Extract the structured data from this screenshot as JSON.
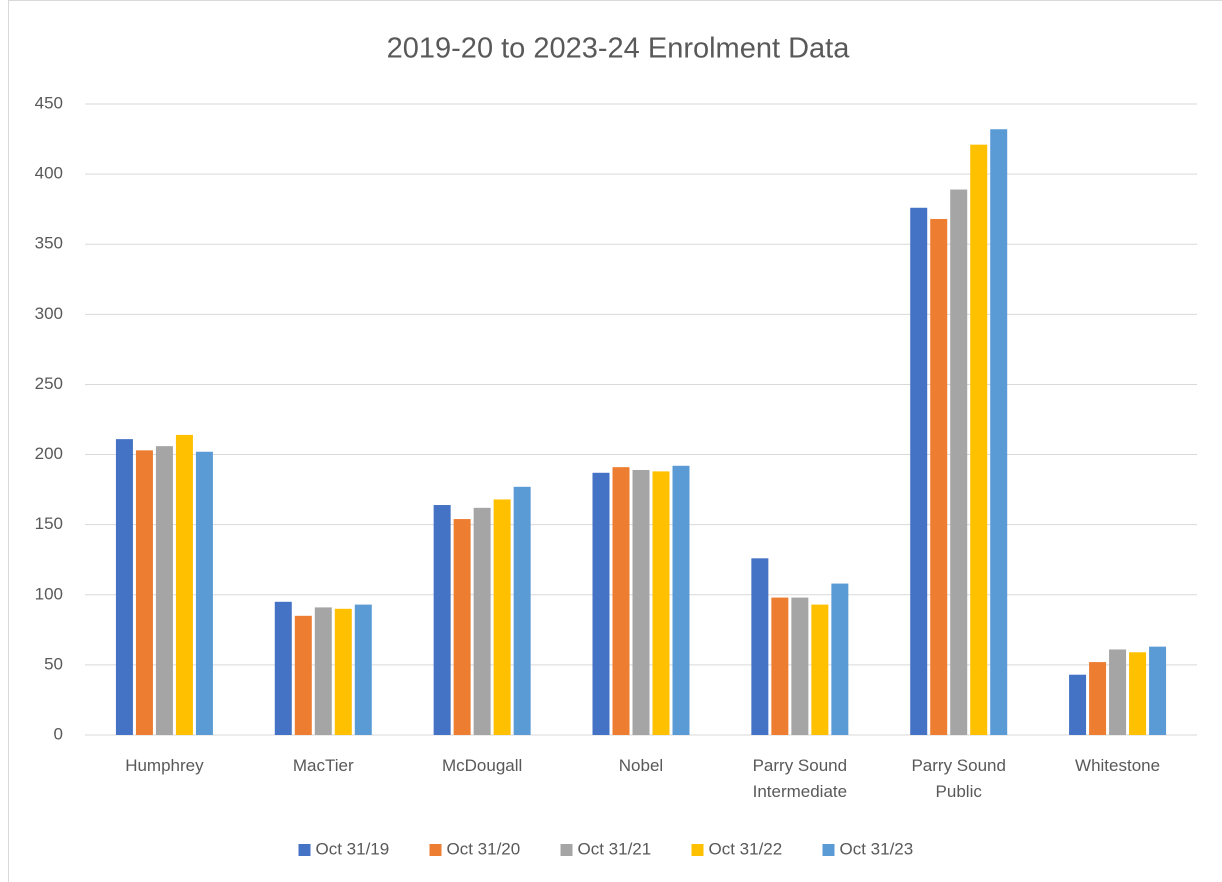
{
  "chart_data": {
    "type": "bar",
    "title": "2019-20 to 2023-24 Enrolment Data",
    "categories": [
      "Humphrey",
      "MacTier",
      "McDougall",
      "Nobel",
      "Parry Sound Intermediate",
      "Parry Sound Public",
      "Whitestone"
    ],
    "series": [
      {
        "name": "Oct 31/19",
        "color": "#4472c4",
        "values": [
          211,
          95,
          164,
          187,
          126,
          376,
          43
        ]
      },
      {
        "name": "Oct 31/20",
        "color": "#ed7d31",
        "values": [
          203,
          85,
          154,
          191,
          98,
          368,
          52
        ]
      },
      {
        "name": "Oct 31/21",
        "color": "#a5a5a5",
        "values": [
          206,
          91,
          162,
          189,
          98,
          389,
          61
        ]
      },
      {
        "name": "Oct 31/22",
        "color": "#ffc000",
        "values": [
          214,
          90,
          168,
          188,
          93,
          421,
          59
        ]
      },
      {
        "name": "Oct 31/23",
        "color": "#5b9bd5",
        "values": [
          202,
          93,
          177,
          192,
          108,
          432,
          63
        ]
      }
    ],
    "ylim": [
      0,
      450
    ],
    "yticks": [
      0,
      50,
      100,
      150,
      200,
      250,
      300,
      350,
      400,
      450
    ],
    "grid": true,
    "legend": "bottom"
  }
}
